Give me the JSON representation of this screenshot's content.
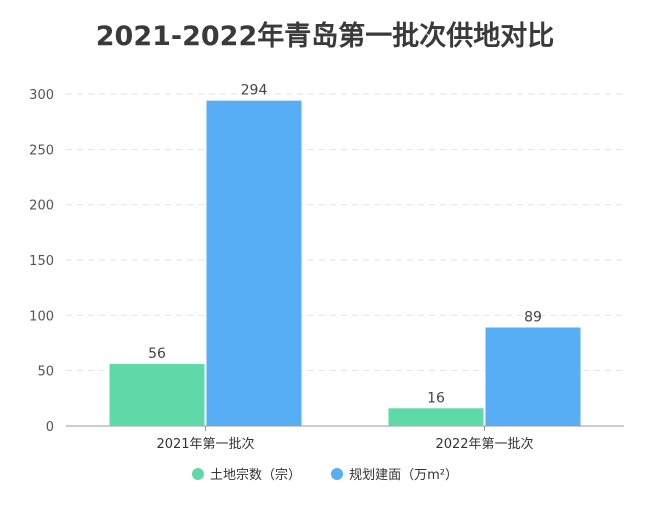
{
  "chart_data": {
    "type": "bar",
    "title": "2021-2022年青岛第一批次供地对比",
    "categories": [
      "2021年第一批次",
      "2022年第一批次"
    ],
    "series": [
      {
        "name": "土地宗数（宗）",
        "values": [
          56,
          16
        ],
        "color": "#5fd9a7"
      },
      {
        "name": "规划建面（万m²）",
        "values": [
          294,
          89
        ],
        "color": "#57aef5"
      }
    ],
    "yticks": [
      "0",
      "50",
      "100",
      "150",
      "200",
      "250",
      "300"
    ],
    "ylim": [
      0,
      300
    ],
    "grid": true,
    "legend": "bottom-center"
  }
}
